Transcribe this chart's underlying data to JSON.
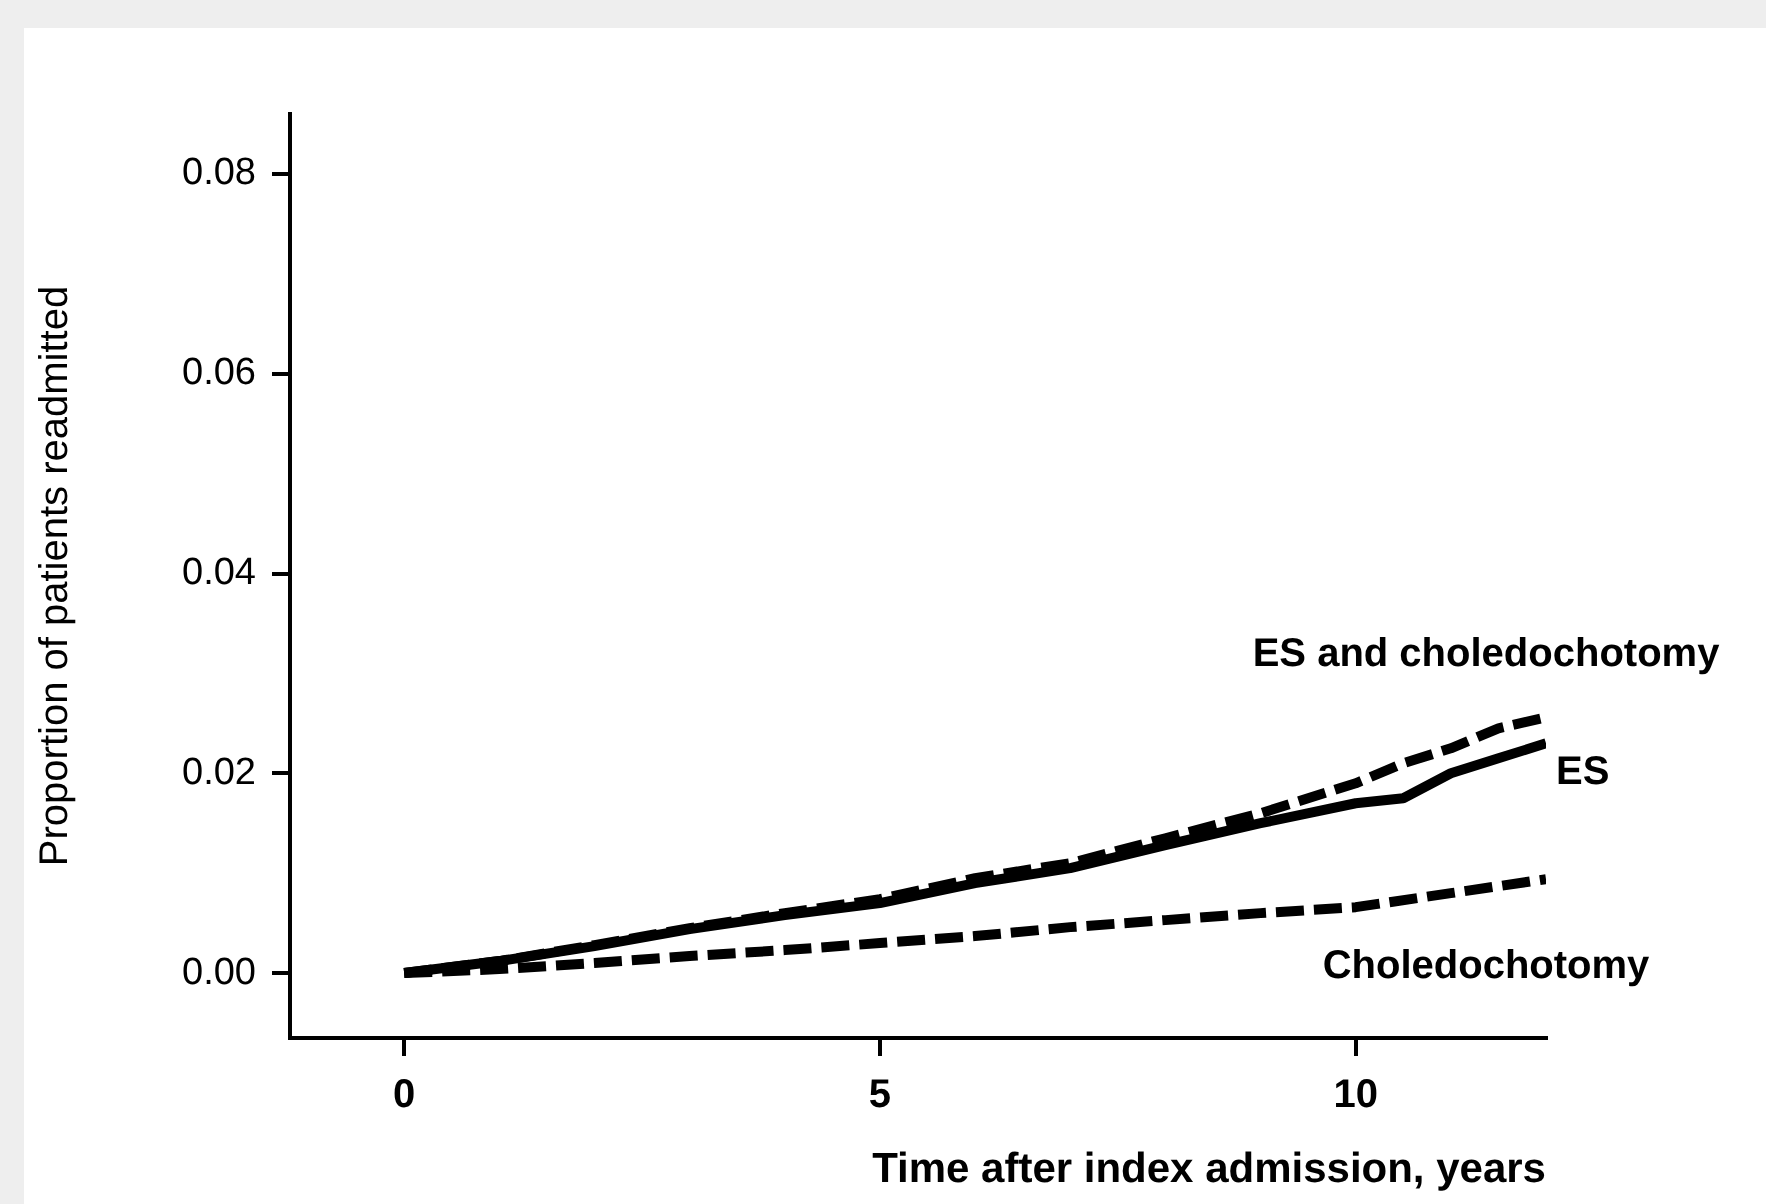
{
  "chart_data": {
    "type": "line",
    "xlabel": "Time after index admission, years",
    "ylabel": "Proportion of patients readmitted",
    "xlim": [
      -1.2,
      12
    ],
    "xticks": [
      0,
      5,
      10
    ],
    "ylim": [
      -0.0065,
      0.086
    ],
    "yticks": [
      {
        "value": 0,
        "label": "0.00"
      },
      {
        "value": 0.02,
        "label": "0.02"
      },
      {
        "value": 0.04,
        "label": "0.04"
      },
      {
        "value": 0.06,
        "label": "0.06"
      },
      {
        "value": 0.08,
        "label": "0.08"
      }
    ],
    "grid": false,
    "legend": false,
    "marker": "none",
    "series": [
      {
        "name": "ES and choledochotomy",
        "color": "#000000",
        "line_style": "dashed",
        "x": [
          0,
          1,
          2,
          3,
          4,
          5,
          6,
          7,
          8,
          9,
          10,
          10.5,
          11,
          11.5,
          12
        ],
        "values": [
          0,
          0.0012,
          0.0028,
          0.0045,
          0.006,
          0.0074,
          0.0095,
          0.011,
          0.0135,
          0.016,
          0.019,
          0.021,
          0.0225,
          0.0245,
          0.0256
        ]
      },
      {
        "name": "ES",
        "color": "#000000",
        "line_style": "solid",
        "x": [
          0,
          1,
          2,
          3,
          4,
          5,
          6,
          7,
          8,
          9,
          10,
          10.5,
          11,
          11.5,
          12
        ],
        "values": [
          0,
          0.0012,
          0.0027,
          0.0044,
          0.0058,
          0.007,
          0.009,
          0.0105,
          0.0128,
          0.015,
          0.017,
          0.0175,
          0.02,
          0.0215,
          0.023
        ]
      },
      {
        "name": "Choledochotomy",
        "color": "#000000",
        "line_style": "dashed",
        "x": [
          0,
          1,
          2,
          3,
          4,
          5,
          6,
          7,
          8,
          9,
          10,
          11,
          12
        ],
        "values": [
          0,
          0.0004,
          0.001,
          0.0017,
          0.0023,
          0.003,
          0.0037,
          0.0046,
          0.0053,
          0.006,
          0.0066,
          0.008,
          0.0094
        ]
      }
    ]
  }
}
